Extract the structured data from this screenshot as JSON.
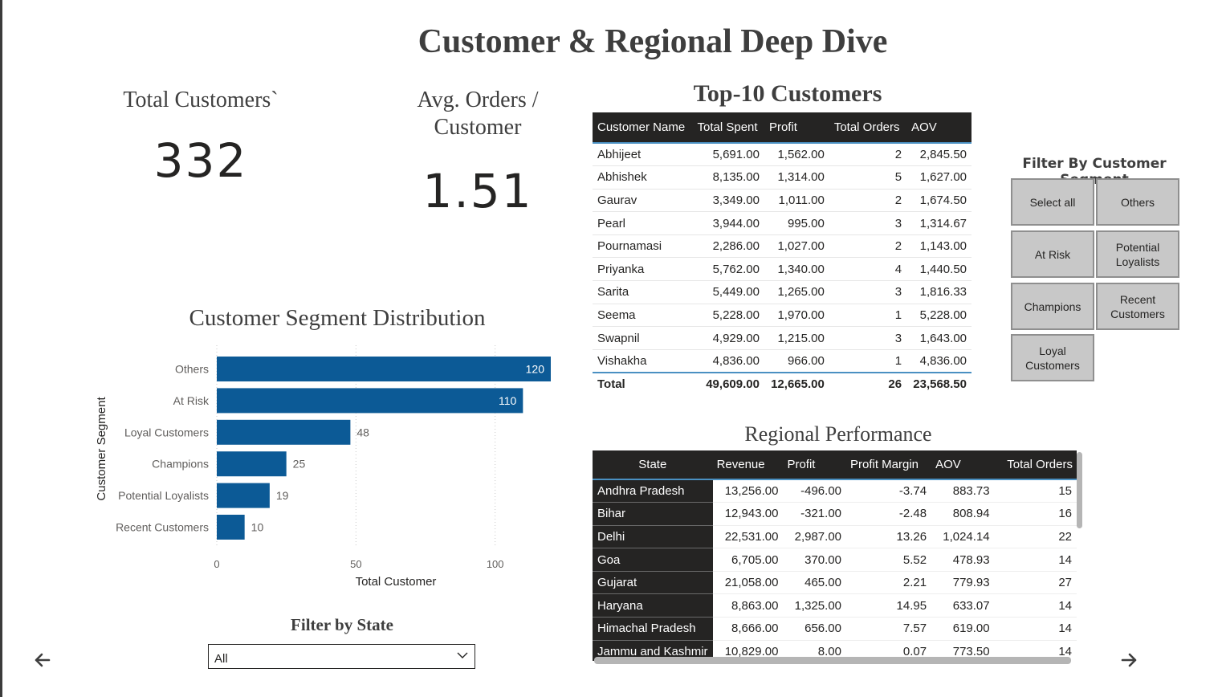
{
  "page": {
    "title": "Customer & Regional Deep Dive"
  },
  "cards": {
    "total_customers": {
      "label": "Total Customers`",
      "value": "332"
    },
    "avg_orders": {
      "label": "Avg. Orders / Customer",
      "value": "1.51"
    }
  },
  "segment_chart": {
    "title": "Customer Segment Distribution",
    "y_axis_title": "Customer Segment",
    "x_axis_title": "Total Customer",
    "ticks": [
      "0",
      "50",
      "100"
    ]
  },
  "chart_data": {
    "type": "bar",
    "orientation": "horizontal",
    "title": "Customer Segment Distribution",
    "xlabel": "Total Customer",
    "ylabel": "Customer Segment",
    "categories": [
      "Others",
      "At Risk",
      "Loyal Customers",
      "Champions",
      "Potential Loyalists",
      "Recent Customers"
    ],
    "values": [
      120,
      110,
      48,
      25,
      19,
      10
    ],
    "xlim": [
      0,
      120
    ],
    "xticks": [
      0,
      50,
      100
    ],
    "grid": "vertical dotted",
    "bar_color": "#0c5a96"
  },
  "top_customers": {
    "title": "Top-10 Customers",
    "columns": [
      "Customer Name",
      "Total Spent",
      "Profit",
      "Total Orders",
      "AOV"
    ],
    "rows": [
      [
        "Abhijeet",
        "5,691.00",
        "1,562.00",
        "2",
        "2,845.50"
      ],
      [
        "Abhishek",
        "8,135.00",
        "1,314.00",
        "5",
        "1,627.00"
      ],
      [
        "Gaurav",
        "3,349.00",
        "1,011.00",
        "2",
        "1,674.50"
      ],
      [
        "Pearl",
        "3,944.00",
        "995.00",
        "3",
        "1,314.67"
      ],
      [
        "Pournamasi",
        "2,286.00",
        "1,027.00",
        "2",
        "1,143.00"
      ],
      [
        "Priyanka",
        "5,762.00",
        "1,340.00",
        "4",
        "1,440.50"
      ],
      [
        "Sarita",
        "5,449.00",
        "1,265.00",
        "3",
        "1,816.33"
      ],
      [
        "Seema",
        "5,228.00",
        "1,970.00",
        "1",
        "5,228.00"
      ],
      [
        "Swapnil",
        "4,929.00",
        "1,215.00",
        "3",
        "1,643.00"
      ],
      [
        "Vishakha",
        "4,836.00",
        "966.00",
        "1",
        "4,836.00"
      ]
    ],
    "total": [
      "Total",
      "49,609.00",
      "12,665.00",
      "26",
      "23,568.50"
    ]
  },
  "segment_filter": {
    "title": "Filter By Customer Segment",
    "options": [
      "Select all",
      "Others",
      "At Risk",
      "Potential Loyalists",
      "Champions",
      "Recent Customers",
      "Loyal Customers"
    ]
  },
  "regional": {
    "title": "Regional Performance",
    "columns": [
      "State",
      "Revenue",
      "Profit",
      "Profit Margin",
      "AOV",
      "Total Orders"
    ],
    "rows": [
      [
        "Andhra Pradesh",
        "13,256.00",
        "-496.00",
        "-3.74",
        "883.73",
        "15"
      ],
      [
        "Bihar",
        "12,943.00",
        "-321.00",
        "-2.48",
        "808.94",
        "16"
      ],
      [
        "Delhi",
        "22,531.00",
        "2,987.00",
        "13.26",
        "1,024.14",
        "22"
      ],
      [
        "Goa",
        "6,705.00",
        "370.00",
        "5.52",
        "478.93",
        "14"
      ],
      [
        "Gujarat",
        "21,058.00",
        "465.00",
        "2.21",
        "779.93",
        "27"
      ],
      [
        "Haryana",
        "8,863.00",
        "1,325.00",
        "14.95",
        "633.07",
        "14"
      ],
      [
        "Himachal Pradesh",
        "8,666.00",
        "656.00",
        "7.57",
        "619.00",
        "14"
      ],
      [
        "Jammu and Kashmir",
        "10,829.00",
        "8.00",
        "0.07",
        "773.50",
        "14"
      ]
    ]
  },
  "state_filter": {
    "title": "Filter by State",
    "selected": "All"
  },
  "icons": {
    "prev": "arrow-left-icon",
    "next": "arrow-right-icon",
    "dropdown": "chevron-down-icon"
  },
  "colors": {
    "header_bg": "#252423",
    "accent_line": "#4a90c2",
    "bar": "#0c5a96",
    "slicer_btn": "#c8c8c8"
  }
}
